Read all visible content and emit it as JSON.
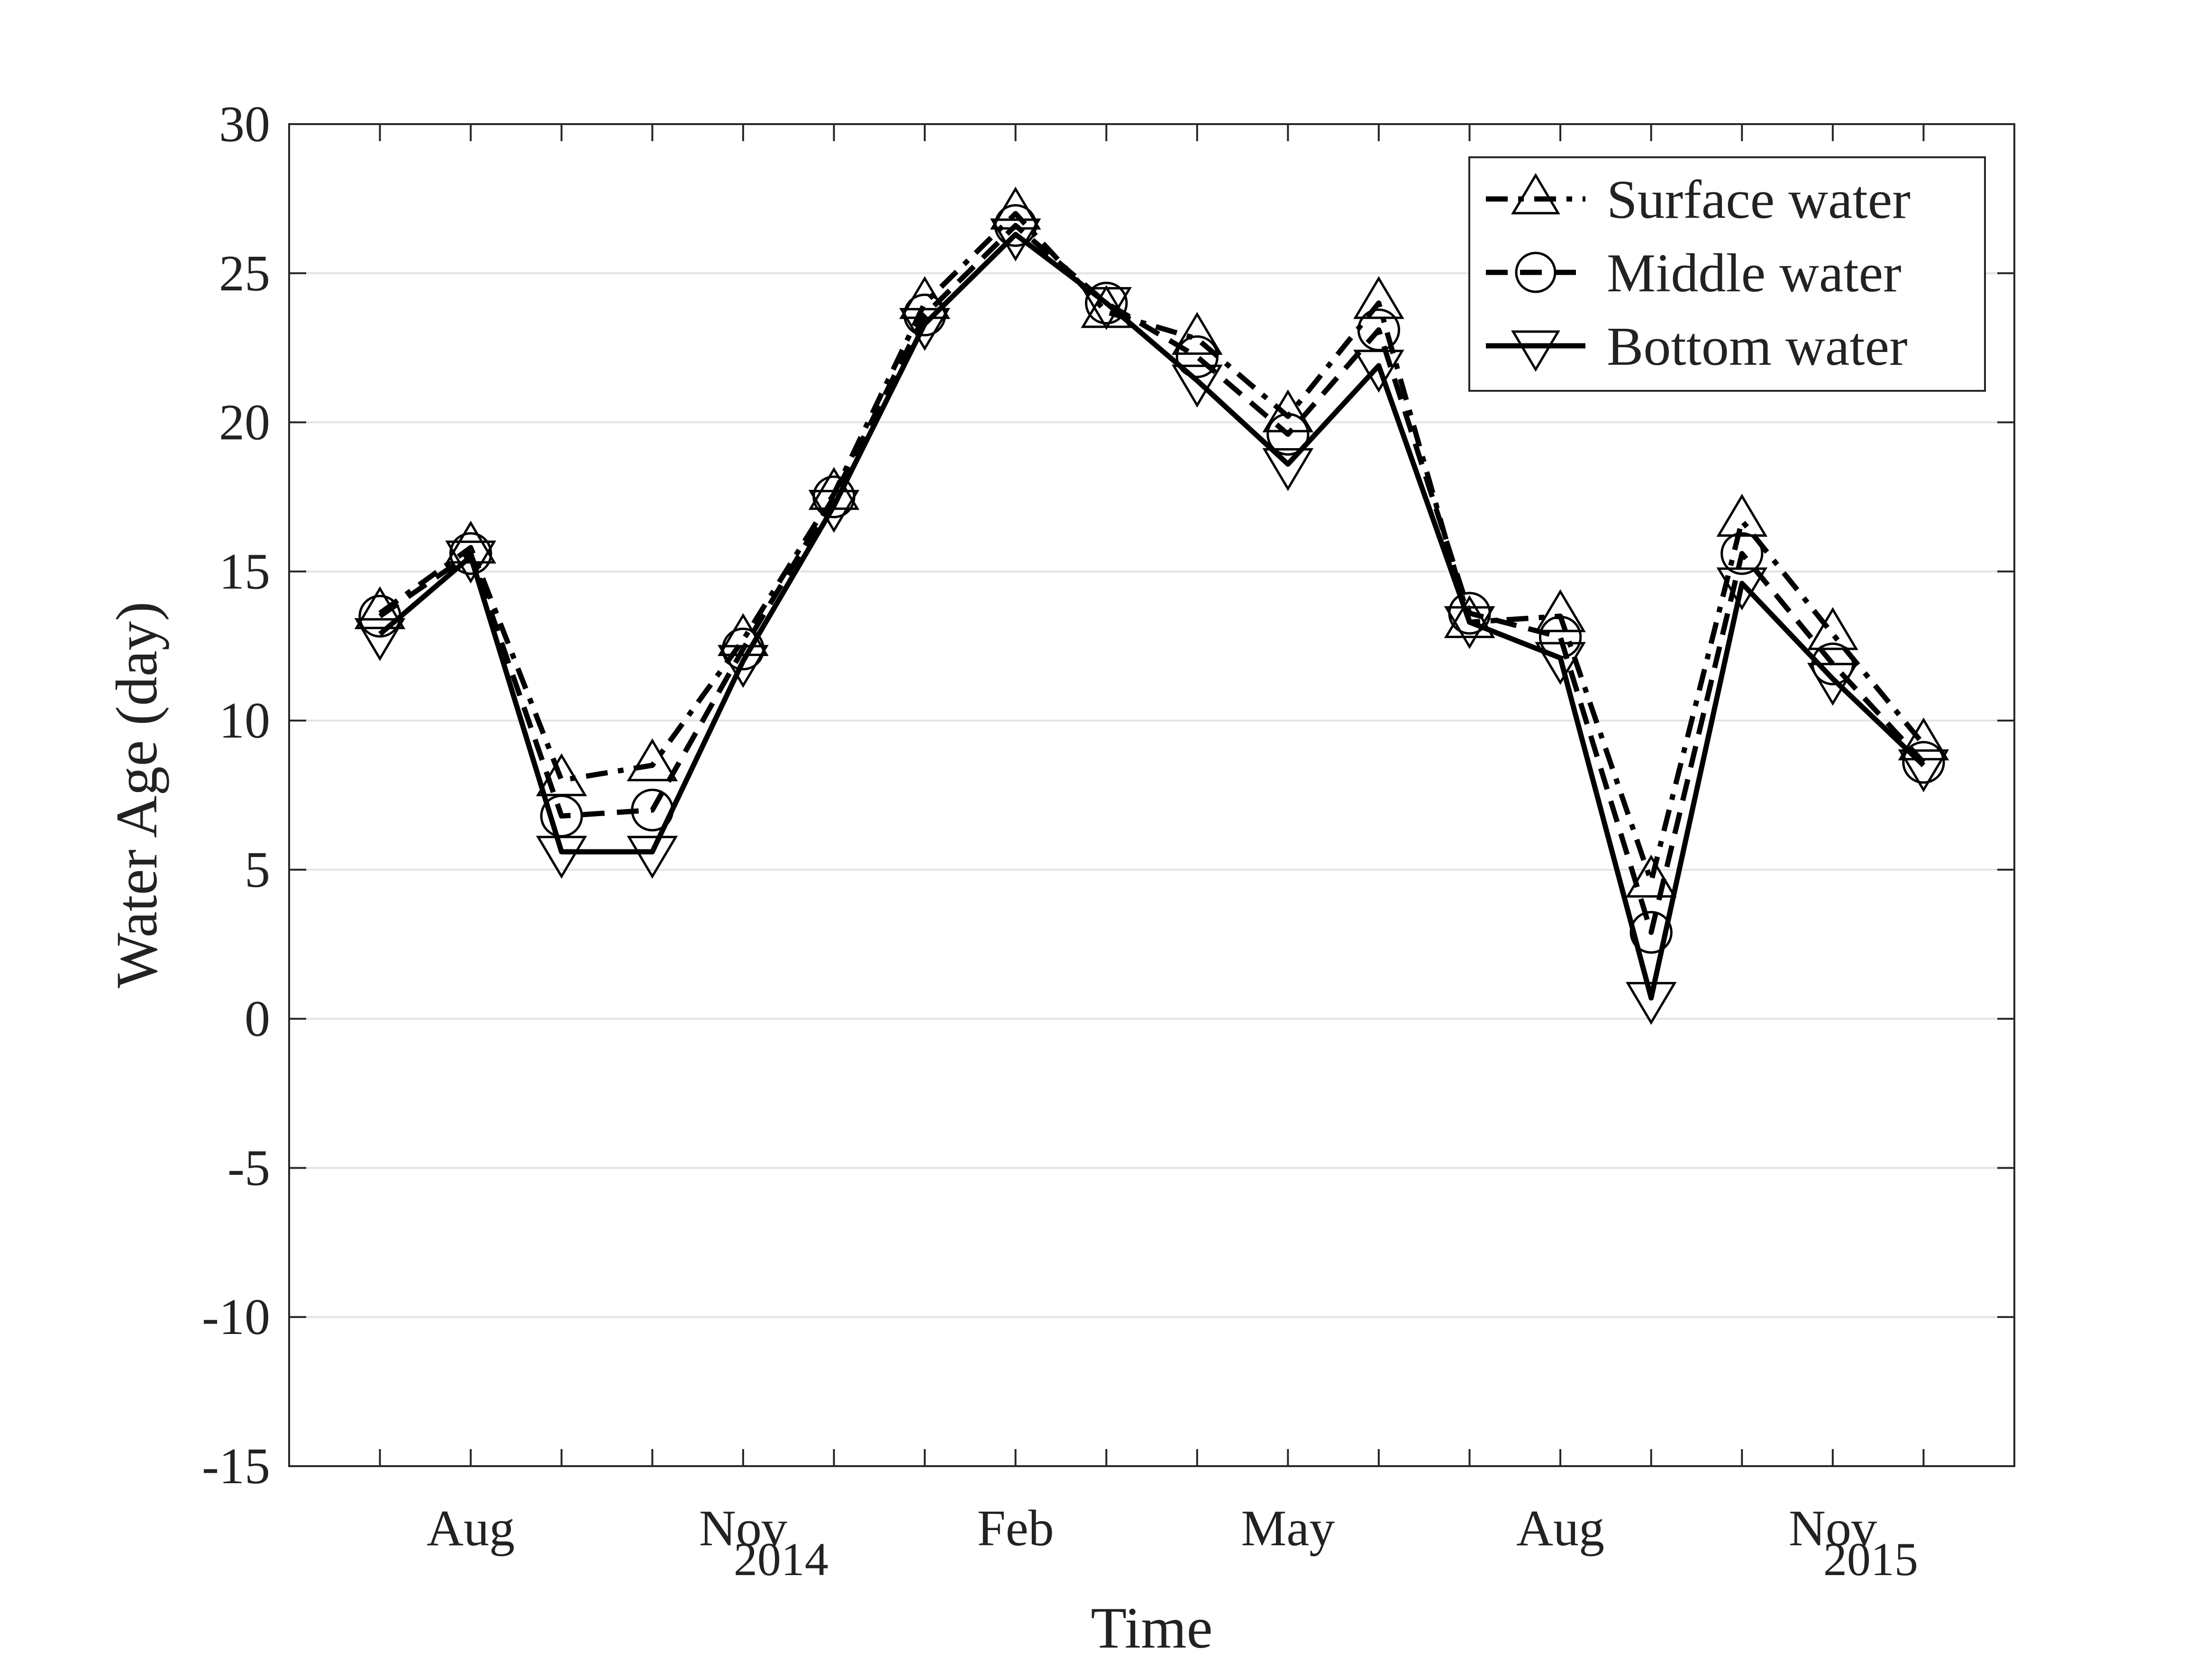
{
  "chart_data": {
    "type": "line",
    "title": "",
    "xlabel": "Time",
    "ylabel": "Water Age (day)",
    "ylim": [
      -15,
      30
    ],
    "yticks": [
      -15,
      -10,
      -5,
      0,
      5,
      10,
      15,
      20,
      25,
      30
    ],
    "grid": "horizontal",
    "legend_position": "top-right",
    "x": [
      1,
      2,
      3,
      4,
      5,
      6,
      7,
      8,
      9,
      10,
      11,
      12,
      13,
      14,
      15,
      16,
      17,
      18
    ],
    "xlim": [
      0,
      19
    ],
    "x_tick_labels": [
      {
        "x": 2,
        "label": "Aug"
      },
      {
        "x": 5,
        "label": "Nov",
        "year": "2014"
      },
      {
        "x": 8,
        "label": "Feb"
      },
      {
        "x": 11,
        "label": "May"
      },
      {
        "x": 14,
        "label": "Aug"
      },
      {
        "x": 17,
        "label": "Nov",
        "year": "2015"
      }
    ],
    "series": [
      {
        "name": "Surface water",
        "line_style": "dash-dot",
        "marker": "triangle-up",
        "values": [
          13.6,
          15.8,
          8.0,
          8.5,
          12.7,
          17.6,
          24.0,
          27.0,
          23.7,
          22.8,
          20.2,
          24.0,
          13.3,
          13.5,
          4.6,
          16.7,
          12.9,
          9.2
        ]
      },
      {
        "name": "Middle water",
        "line_style": "dashed",
        "marker": "circle",
        "values": [
          13.5,
          15.6,
          6.8,
          7.0,
          12.4,
          17.5,
          23.6,
          26.6,
          24.0,
          22.2,
          19.6,
          23.1,
          13.6,
          12.8,
          2.9,
          15.6,
          11.9,
          8.6
        ]
      },
      {
        "name": "Bottom water",
        "line_style": "solid",
        "marker": "triangle-down",
        "values": [
          12.9,
          15.5,
          5.6,
          5.6,
          12.0,
          17.2,
          23.3,
          26.3,
          24.0,
          21.4,
          18.6,
          21.9,
          13.3,
          12.1,
          0.7,
          14.6,
          11.4,
          8.5
        ]
      }
    ]
  }
}
